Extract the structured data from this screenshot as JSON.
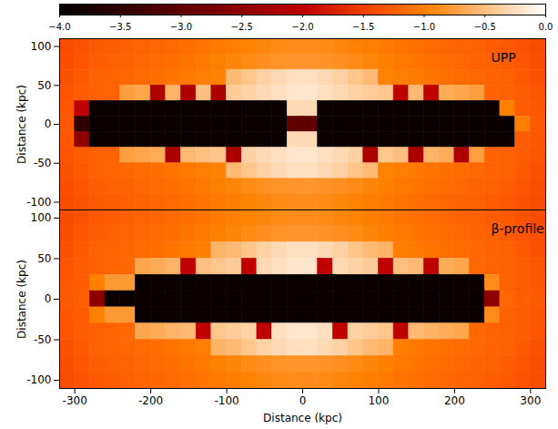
{
  "chart_data": [
    {
      "type": "heatmap",
      "title": "UPP",
      "y_label": "Distance (kpc)",
      "tick_labels": "y",
      "xlim": [
        -320,
        320
      ],
      "ylim": [
        -110,
        110
      ],
      "yticks": [
        -100,
        -50,
        0,
        50,
        100
      ],
      "colorbar": {
        "range": [
          -4,
          0
        ],
        "ticks": [
          {
            "value": -4,
            "label": "−4.0"
          },
          {
            "value": -3.5,
            "label": "−3.5"
          },
          {
            "value": -3,
            "label": "−3.0"
          },
          {
            "value": -2.5,
            "label": "−2.5"
          },
          {
            "value": -2,
            "label": "−2.0"
          },
          {
            "value": -1.5,
            "label": "−1.5"
          },
          {
            "value": -1,
            "label": "−1.0"
          },
          {
            "value": -0.5,
            "label": "−0.5"
          },
          {
            "value": 0,
            "label": "0.0"
          }
        ]
      },
      "x": [
        -310,
        -290,
        -270,
        -250,
        -230,
        -210,
        -190,
        -170,
        -150,
        -130,
        -110,
        -90,
        -70,
        -50,
        -30,
        -10,
        10,
        30,
        50,
        70,
        90,
        110,
        130,
        150,
        170,
        190,
        210,
        230,
        250,
        270,
        290,
        310
      ],
      "y": [
        100,
        80,
        60,
        40,
        20,
        0,
        -20,
        -40,
        -60,
        -80,
        -100
      ],
      "cells": [
        [
          -1.4,
          -1.35,
          -1.3,
          -1.28,
          -1.25,
          -1.22,
          -1.2,
          -1.17,
          -1.13,
          -1.1,
          -1.06,
          -1.02,
          -0.98,
          -0.95,
          -0.92,
          -0.9,
          -0.9,
          -0.92,
          -0.95,
          -0.98,
          -1.02,
          -1.06,
          -1.1,
          -1.13,
          -1.17,
          -1.2,
          -1.22,
          -1.25,
          -1.28,
          -1.3,
          -1.35,
          -1.4
        ],
        [
          -1.38,
          -1.33,
          -1.28,
          -1.25,
          -1.22,
          -1.19,
          -1.16,
          -1.13,
          -1.09,
          -1.05,
          -1.0,
          -0.96,
          -0.92,
          -0.88,
          -0.85,
          -0.83,
          -0.83,
          -0.85,
          -0.88,
          -0.92,
          -0.96,
          -1.0,
          -1.05,
          -1.09,
          -1.13,
          -1.16,
          -1.19,
          -1.22,
          -1.25,
          -1.28,
          -1.33,
          -1.38
        ],
        [
          -1.36,
          -1.3,
          -1.25,
          -1.22,
          -1.19,
          -1.16,
          -1.13,
          -1.1,
          -1.06,
          -1.02,
          -0.98,
          -0.55,
          -0.45,
          -0.35,
          -0.3,
          -0.25,
          -0.25,
          -0.3,
          -0.35,
          -0.45,
          -0.55,
          -0.98,
          -1.02,
          -1.06,
          -1.1,
          -1.13,
          -1.16,
          -1.19,
          -1.22,
          -1.25,
          -1.3,
          -1.36
        ],
        [
          -1.33,
          -1.29,
          -1.25,
          -1.22,
          -0.75,
          -0.7,
          -2.2,
          -0.6,
          -2.2,
          -0.5,
          -2.2,
          -0.4,
          -0.35,
          -0.3,
          -0.25,
          -0.2,
          -0.2,
          -0.25,
          -0.3,
          -0.35,
          -0.4,
          -0.45,
          -2.0,
          -0.55,
          -2.0,
          -0.65,
          -0.7,
          -0.75,
          -1.22,
          -1.25,
          -1.29,
          -1.33
        ],
        [
          -1.32,
          -2.0,
          -3.9,
          -3.9,
          -3.9,
          -3.9,
          -3.9,
          -3.9,
          -3.9,
          -3.9,
          -3.9,
          -3.9,
          -3.9,
          -3.9,
          -3.9,
          -0.3,
          -0.3,
          -3.9,
          -3.9,
          -3.9,
          -3.9,
          -3.9,
          -3.9,
          -3.9,
          -3.9,
          -3.9,
          -3.9,
          -3.9,
          -3.9,
          -1.0,
          -1.28,
          -1.32
        ],
        [
          -1.3,
          -3.5,
          -3.9,
          -3.9,
          -3.9,
          -3.9,
          -3.9,
          -3.9,
          -3.9,
          -3.9,
          -3.9,
          -3.9,
          -3.9,
          -3.9,
          -3.9,
          -3.0,
          -3.0,
          -3.9,
          -3.9,
          -3.9,
          -3.9,
          -3.9,
          -3.9,
          -3.9,
          -3.9,
          -3.9,
          -3.9,
          -3.9,
          -3.9,
          -3.9,
          -1.0,
          -1.3
        ],
        [
          -1.32,
          -2.5,
          -3.9,
          -3.9,
          -3.9,
          -3.9,
          -3.9,
          -3.9,
          -3.9,
          -3.9,
          -3.9,
          -3.9,
          -3.9,
          -3.9,
          -3.9,
          -0.3,
          -0.3,
          -3.9,
          -3.9,
          -3.9,
          -3.9,
          -3.9,
          -3.9,
          -3.9,
          -3.9,
          -3.9,
          -3.9,
          -3.9,
          -3.9,
          -3.9,
          -1.28,
          -1.32
        ],
        [
          -1.33,
          -1.29,
          -1.25,
          -1.22,
          -0.75,
          -0.7,
          -0.65,
          -2.2,
          -0.55,
          -0.5,
          -0.45,
          -2.2,
          -0.35,
          -0.3,
          -0.25,
          -0.2,
          -0.2,
          -0.25,
          -0.3,
          -0.35,
          -2.2,
          -0.45,
          -0.5,
          -2.2,
          -0.6,
          -0.65,
          -2.2,
          -0.75,
          -1.22,
          -1.25,
          -1.29,
          -1.33
        ],
        [
          -1.36,
          -1.3,
          -1.25,
          -1.22,
          -1.19,
          -1.16,
          -1.13,
          -1.1,
          -1.06,
          -1.02,
          -0.98,
          -0.55,
          -0.45,
          -0.35,
          -0.3,
          -0.25,
          -0.25,
          -0.3,
          -0.35,
          -0.45,
          -0.55,
          -0.98,
          -1.02,
          -1.06,
          -1.1,
          -1.13,
          -1.16,
          -1.19,
          -1.22,
          -1.25,
          -1.3,
          -1.36
        ],
        [
          -1.38,
          -1.33,
          -1.28,
          -1.25,
          -1.22,
          -1.19,
          -1.16,
          -1.13,
          -1.09,
          -1.05,
          -1.0,
          -0.96,
          -0.92,
          -0.88,
          -0.85,
          -0.83,
          -0.83,
          -0.85,
          -0.88,
          -0.92,
          -0.96,
          -1.0,
          -1.05,
          -1.09,
          -1.13,
          -1.16,
          -1.19,
          -1.22,
          -1.25,
          -1.28,
          -1.33,
          -1.38
        ],
        [
          -1.4,
          -1.35,
          -1.3,
          -1.28,
          -1.25,
          -1.22,
          -1.2,
          -1.17,
          -1.13,
          -1.1,
          -1.06,
          -1.02,
          -0.98,
          -0.95,
          -0.92,
          -0.9,
          -0.9,
          -0.92,
          -0.95,
          -0.98,
          -1.02,
          -1.06,
          -1.1,
          -1.13,
          -1.17,
          -1.2,
          -1.22,
          -1.25,
          -1.28,
          -1.3,
          -1.35,
          -1.4
        ]
      ]
    },
    {
      "type": "heatmap",
      "title": "β-profile",
      "x_label": "Distance (kpc)",
      "y_label": "Distance (kpc)",
      "xlim": [
        -320,
        320
      ],
      "ylim": [
        -110,
        110
      ],
      "xticks": [
        -300,
        -200,
        -100,
        0,
        100,
        200,
        300
      ],
      "yticks": [
        -100,
        -50,
        0,
        50,
        100
      ],
      "x": [
        -310,
        -290,
        -270,
        -250,
        -230,
        -210,
        -190,
        -170,
        -150,
        -130,
        -110,
        -90,
        -70,
        -50,
        -30,
        -10,
        10,
        30,
        50,
        70,
        90,
        110,
        130,
        150,
        170,
        190,
        210,
        230,
        250,
        270,
        290,
        310
      ],
      "y": [
        100,
        80,
        60,
        40,
        20,
        0,
        -20,
        -40,
        -60,
        -80,
        -100
      ],
      "cells": [
        [
          -1.4,
          -1.35,
          -1.3,
          -1.28,
          -1.25,
          -1.22,
          -1.2,
          -1.17,
          -1.13,
          -1.1,
          -1.06,
          -1.02,
          -0.98,
          -0.95,
          -0.92,
          -0.9,
          -0.9,
          -0.92,
          -0.95,
          -0.98,
          -1.02,
          -1.06,
          -1.1,
          -1.13,
          -1.17,
          -1.2,
          -1.22,
          -1.25,
          -1.28,
          -1.3,
          -1.35,
          -1.4
        ],
        [
          -1.38,
          -1.33,
          -1.28,
          -1.25,
          -1.22,
          -1.19,
          -1.16,
          -1.13,
          -1.09,
          -1.05,
          -1.0,
          -0.96,
          -0.92,
          -0.88,
          -0.85,
          -0.83,
          -0.83,
          -0.85,
          -0.88,
          -0.92,
          -0.96,
          -1.0,
          -1.05,
          -1.09,
          -1.13,
          -1.16,
          -1.19,
          -1.22,
          -1.25,
          -1.28,
          -1.33,
          -1.38
        ],
        [
          -1.36,
          -1.3,
          -1.25,
          -1.22,
          -1.19,
          -1.16,
          -1.13,
          -1.1,
          -1.06,
          -1.02,
          -0.6,
          -0.55,
          -0.45,
          -0.35,
          -0.3,
          -0.25,
          -0.25,
          -0.3,
          -0.35,
          -0.45,
          -0.55,
          -0.6,
          -1.02,
          -1.06,
          -1.1,
          -1.13,
          -1.16,
          -1.19,
          -1.22,
          -1.25,
          -1.3,
          -1.36
        ],
        [
          -1.33,
          -1.29,
          -1.25,
          -1.22,
          -1.19,
          -0.7,
          -0.65,
          -0.6,
          -2.0,
          -0.5,
          -0.45,
          -0.4,
          -2.0,
          -0.3,
          -0.25,
          -0.2,
          -0.2,
          -2.0,
          -0.3,
          -0.35,
          -0.4,
          -2.0,
          -0.5,
          -0.55,
          -2.0,
          -0.65,
          -0.7,
          -1.19,
          -1.22,
          -1.25,
          -1.29,
          -1.33
        ],
        [
          -1.32,
          -1.29,
          -1.0,
          -0.8,
          -0.8,
          -3.9,
          -3.9,
          -3.9,
          -3.9,
          -3.9,
          -3.9,
          -3.9,
          -3.9,
          -3.9,
          -3.9,
          -3.9,
          -3.9,
          -3.9,
          -3.9,
          -3.9,
          -3.9,
          -3.9,
          -3.9,
          -3.9,
          -3.9,
          -3.9,
          -3.9,
          -3.9,
          -0.9,
          -1.25,
          -1.29,
          -1.32
        ],
        [
          -1.3,
          -1.27,
          -2.5,
          -3.9,
          -3.9,
          -3.9,
          -3.9,
          -3.9,
          -3.9,
          -3.9,
          -3.9,
          -3.9,
          -3.9,
          -3.9,
          -3.9,
          -3.9,
          -3.9,
          -3.9,
          -3.9,
          -3.9,
          -3.9,
          -3.9,
          -3.9,
          -3.9,
          -3.9,
          -3.9,
          -3.9,
          -3.9,
          -2.5,
          -1.2,
          -1.27,
          -1.3
        ],
        [
          -1.32,
          -1.29,
          -1.0,
          -0.8,
          -0.8,
          -3.9,
          -3.9,
          -3.9,
          -3.9,
          -3.9,
          -3.9,
          -3.9,
          -3.9,
          -3.9,
          -3.9,
          -3.9,
          -3.9,
          -3.9,
          -3.9,
          -3.9,
          -3.9,
          -3.9,
          -3.9,
          -3.9,
          -3.9,
          -3.9,
          -3.9,
          -3.9,
          -0.9,
          -1.25,
          -1.29,
          -1.32
        ],
        [
          -1.33,
          -1.29,
          -1.25,
          -1.22,
          -1.19,
          -0.7,
          -0.65,
          -0.6,
          -0.55,
          -2.0,
          -0.45,
          -0.4,
          -0.35,
          -2.0,
          -0.25,
          -0.2,
          -0.2,
          -0.25,
          -2.0,
          -0.35,
          -0.4,
          -0.45,
          -2.0,
          -0.55,
          -0.6,
          -0.65,
          -0.7,
          -1.19,
          -1.22,
          -1.25,
          -1.29,
          -1.33
        ],
        [
          -1.36,
          -1.3,
          -1.25,
          -1.22,
          -1.19,
          -1.16,
          -1.13,
          -1.1,
          -1.06,
          -1.02,
          -0.6,
          -0.55,
          -0.45,
          -0.35,
          -0.3,
          -0.25,
          -0.25,
          -0.3,
          -0.35,
          -0.45,
          -0.55,
          -0.6,
          -1.02,
          -1.06,
          -1.1,
          -1.13,
          -1.16,
          -1.19,
          -1.22,
          -1.25,
          -1.3,
          -1.36
        ],
        [
          -1.38,
          -1.33,
          -1.28,
          -1.25,
          -1.22,
          -1.19,
          -1.16,
          -1.13,
          -1.09,
          -1.05,
          -1.0,
          -0.96,
          -0.92,
          -0.88,
          -0.85,
          -0.83,
          -0.83,
          -0.85,
          -0.88,
          -0.92,
          -0.96,
          -1.0,
          -1.05,
          -1.09,
          -1.13,
          -1.16,
          -1.19,
          -1.22,
          -1.25,
          -1.28,
          -1.33,
          -1.38
        ],
        [
          -1.4,
          -1.35,
          -1.3,
          -1.28,
          -1.25,
          -1.22,
          -1.2,
          -1.17,
          -1.13,
          -1.1,
          -1.06,
          -1.02,
          -0.98,
          -0.95,
          -0.92,
          -0.9,
          -0.9,
          -0.92,
          -0.95,
          -0.98,
          -1.02,
          -1.06,
          -1.1,
          -1.13,
          -1.17,
          -1.2,
          -1.22,
          -1.25,
          -1.28,
          -1.3,
          -1.35,
          -1.4
        ]
      ]
    }
  ]
}
